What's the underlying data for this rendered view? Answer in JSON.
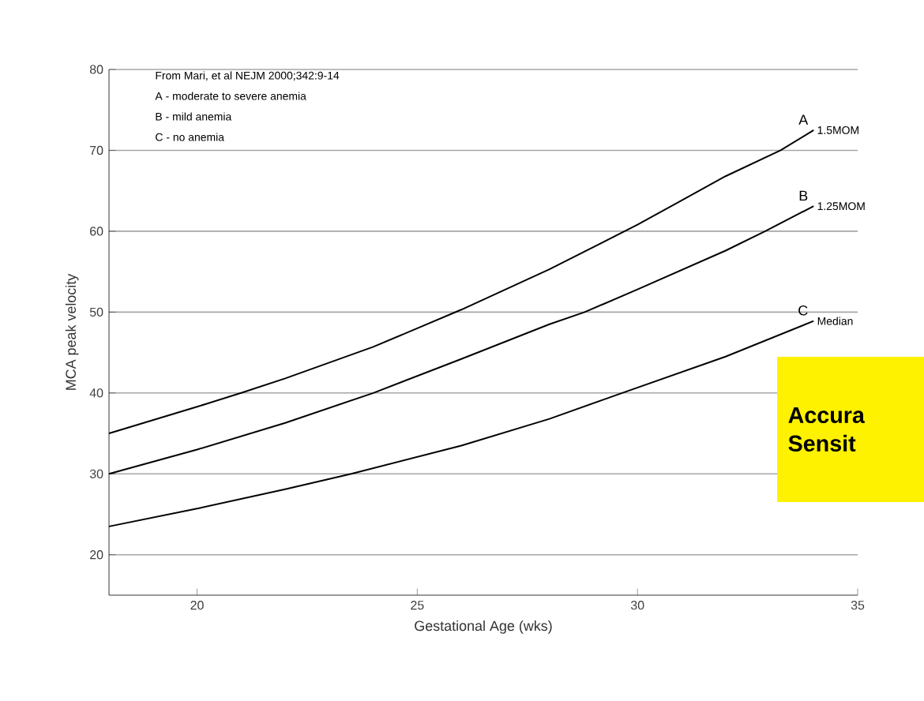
{
  "chart_data": {
    "type": "line",
    "xlabel": "Gestational Age (wks)",
    "ylabel": "MCA peak velocity",
    "xlim": [
      18,
      35
    ],
    "ylim": [
      15,
      80
    ],
    "xticks": [
      20,
      25,
      30,
      35
    ],
    "yticks": [
      20,
      30,
      40,
      50,
      60,
      70,
      80
    ],
    "grid": "y",
    "legend": false,
    "marker": "none",
    "line_style": "solid",
    "series": [
      {
        "name": "1.5MOM",
        "color": "#000000",
        "x": [
          18,
          20,
          21,
          22,
          24,
          26,
          28,
          30,
          32,
          33.25,
          34
        ],
        "values": [
          35,
          38.3,
          40,
          41.8,
          45.7,
          50.3,
          55.3,
          60.8,
          66.8,
          70,
          72.5
        ]
      },
      {
        "name": "1.25MOM",
        "color": "#000000",
        "x": [
          18,
          20,
          22,
          24,
          26,
          28,
          28.8,
          30,
          32,
          32.9,
          34
        ],
        "values": [
          30,
          33,
          36.3,
          40,
          44.2,
          48.5,
          50,
          52.8,
          57.6,
          60,
          63.1
        ]
      },
      {
        "name": "Median",
        "color": "#000000",
        "x": [
          18,
          20,
          22,
          23.5,
          26,
          28,
          29.65,
          32,
          34
        ],
        "values": [
          23.5,
          25.7,
          28.1,
          30,
          33.5,
          36.8,
          40,
          44.5,
          48.9
        ]
      }
    ],
    "annotations": [
      "From Mari, et al NEJM 2000;342:9-14",
      "A - moderate to severe anemia",
      "B - mild anemia",
      "C - no anemia",
      "A",
      "B",
      "C",
      "Accura",
      "Sensit"
    ]
  }
}
